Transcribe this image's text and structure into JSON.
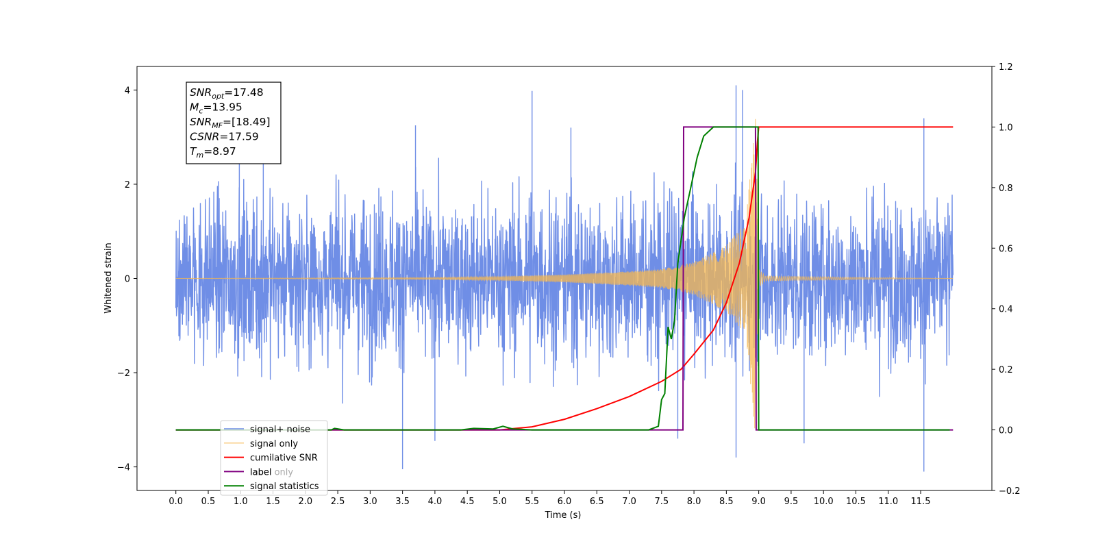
{
  "chart_data": {
    "type": "line",
    "xlabel": "Time (s)",
    "ylabel_left": "Whitened strain",
    "ylabel_right": "",
    "xlim": [
      -0.6,
      12.6
    ],
    "ylim_left": [
      -4.5,
      4.5
    ],
    "ylim_right": [
      -0.2,
      1.2
    ],
    "x_ticks": [
      "0.0",
      "0.5",
      "1.0",
      "1.5",
      "2.0",
      "2.5",
      "3.0",
      "3.5",
      "4.0",
      "4.5",
      "5.0",
      "5.5",
      "6.0",
      "6.5",
      "7.0",
      "7.5",
      "8.0",
      "8.5",
      "9.0",
      "9.5",
      "10.0",
      "10.5",
      "11.0",
      "11.5"
    ],
    "y_ticks_left": [
      "−4",
      "−2",
      "0",
      "2",
      "4"
    ],
    "y_ticks_right": [
      "−0.2",
      "0.0",
      "0.2",
      "0.4",
      "0.6",
      "0.8",
      "1.0",
      "1.2"
    ],
    "grid": false,
    "legend_position": "lower-left",
    "annotation": [
      {
        "base": "SNR",
        "sub": "opt",
        "value": "=17.48"
      },
      {
        "base": "M",
        "sub": "c",
        "value": "=13.95"
      },
      {
        "base": "SNR",
        "sub": "MF",
        "value": "=[18.49]"
      },
      {
        "base": "CSNR",
        "sub": "",
        "value": "=17.59"
      },
      {
        "base": "T",
        "sub": "m",
        "value": "=8.97"
      }
    ],
    "series": [
      {
        "name": "signal+ noise",
        "color": "#6f8ee6",
        "axis": "left",
        "x_range": [
          0.0,
          12.0
        ],
        "typical_amplitude": 2.4,
        "notable_peaks": [
          {
            "x": 0.98,
            "y": 3.25
          },
          {
            "x": 1.35,
            "y": 3.7
          },
          {
            "x": 3.7,
            "y": 3.25
          },
          {
            "x": 5.5,
            "y": 3.98
          },
          {
            "x": 6.1,
            "y": 3.2
          },
          {
            "x": 8.65,
            "y": 4.1
          },
          {
            "x": 8.75,
            "y": 4.0
          },
          {
            "x": 11.55,
            "y": 3.4
          },
          {
            "x": 3.5,
            "y": -4.05
          },
          {
            "x": 8.65,
            "y": -3.8
          },
          {
            "x": 11.55,
            "y": -4.1
          },
          {
            "x": 4.0,
            "y": -3.45
          },
          {
            "x": 7.75,
            "y": -3.4
          },
          {
            "x": 9.7,
            "y": -3.5
          }
        ]
      },
      {
        "name": "signal only",
        "color": "#f5b74f",
        "axis": "left",
        "envelope": [
          {
            "x": 0.0,
            "y": 0.0
          },
          {
            "x": 4.0,
            "y": 0.02
          },
          {
            "x": 5.0,
            "y": 0.04
          },
          {
            "x": 6.0,
            "y": 0.08
          },
          {
            "x": 7.0,
            "y": 0.15
          },
          {
            "x": 7.5,
            "y": 0.2
          },
          {
            "x": 8.0,
            "y": 0.35
          },
          {
            "x": 8.5,
            "y": 0.7
          },
          {
            "x": 8.8,
            "y": 1.2
          },
          {
            "x": 8.95,
            "y": 3.4
          },
          {
            "x": 9.0,
            "y": 0.2
          },
          {
            "x": 9.1,
            "y": 0.05
          },
          {
            "x": 12.0,
            "y": 0.0
          }
        ]
      },
      {
        "name": "cumilative SNR",
        "color": "#ff0000",
        "axis": "right",
        "points": [
          {
            "x": 0.0,
            "y": 0.0
          },
          {
            "x": 5.0,
            "y": 0.0
          },
          {
            "x": 5.5,
            "y": 0.01
          },
          {
            "x": 6.0,
            "y": 0.035
          },
          {
            "x": 6.5,
            "y": 0.07
          },
          {
            "x": 7.0,
            "y": 0.11
          },
          {
            "x": 7.5,
            "y": 0.16
          },
          {
            "x": 7.8,
            "y": 0.2
          },
          {
            "x": 8.0,
            "y": 0.25
          },
          {
            "x": 8.3,
            "y": 0.33
          },
          {
            "x": 8.5,
            "y": 0.42
          },
          {
            "x": 8.7,
            "y": 0.55
          },
          {
            "x": 8.85,
            "y": 0.7
          },
          {
            "x": 8.95,
            "y": 0.85
          },
          {
            "x": 8.98,
            "y": 0.95
          },
          {
            "x": 9.0,
            "y": 1.0
          },
          {
            "x": 12.0,
            "y": 1.0
          }
        ]
      },
      {
        "name": "label",
        "color": "#800080",
        "axis": "right",
        "points": [
          {
            "x": 0.0,
            "y": 0.0
          },
          {
            "x": 7.83,
            "y": 0.0
          },
          {
            "x": 7.84,
            "y": 1.0
          },
          {
            "x": 8.95,
            "y": 1.0
          },
          {
            "x": 8.96,
            "y": 0.0
          },
          {
            "x": 12.0,
            "y": 0.0
          }
        ]
      },
      {
        "name": "label only",
        "color": "#800080",
        "axis": "right",
        "points": []
      },
      {
        "name": "signal statistics",
        "color": "#008000",
        "axis": "right",
        "points": [
          {
            "x": 0.0,
            "y": 0.0
          },
          {
            "x": 2.4,
            "y": 0.0
          },
          {
            "x": 2.45,
            "y": 0.005
          },
          {
            "x": 2.6,
            "y": 0.0
          },
          {
            "x": 4.4,
            "y": 0.0
          },
          {
            "x": 4.6,
            "y": 0.005
          },
          {
            "x": 4.9,
            "y": 0.003
          },
          {
            "x": 5.05,
            "y": 0.012
          },
          {
            "x": 5.2,
            "y": 0.003
          },
          {
            "x": 5.5,
            "y": 0.0
          },
          {
            "x": 7.3,
            "y": 0.0
          },
          {
            "x": 7.45,
            "y": 0.012
          },
          {
            "x": 7.5,
            "y": 0.1
          },
          {
            "x": 7.55,
            "y": 0.12
          },
          {
            "x": 7.6,
            "y": 0.34
          },
          {
            "x": 7.65,
            "y": 0.3
          },
          {
            "x": 7.7,
            "y": 0.36
          },
          {
            "x": 7.75,
            "y": 0.55
          },
          {
            "x": 7.85,
            "y": 0.7
          },
          {
            "x": 7.95,
            "y": 0.8
          },
          {
            "x": 8.05,
            "y": 0.9
          },
          {
            "x": 8.15,
            "y": 0.97
          },
          {
            "x": 8.3,
            "y": 1.0
          },
          {
            "x": 8.99,
            "y": 1.0
          },
          {
            "x": 9.0,
            "y": 0.0
          },
          {
            "x": 11.95,
            "y": 0.0
          }
        ]
      }
    ]
  }
}
